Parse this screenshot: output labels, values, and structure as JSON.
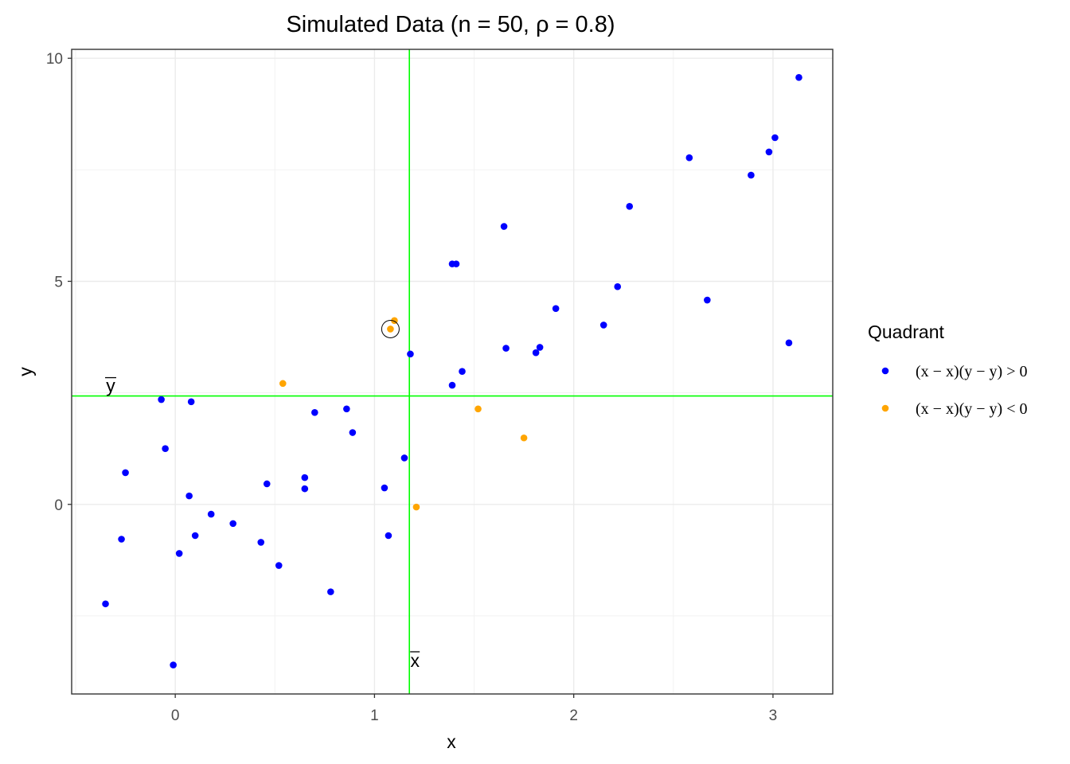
{
  "chart_data": {
    "type": "scatter",
    "title": "Simulated Data (n = 50, ρ = 0.8)",
    "xlabel": "x",
    "ylabel": "y",
    "xlim": [
      -0.52,
      3.3
    ],
    "ylim": [
      -4.25,
      10.2
    ],
    "x_ticks": [
      0,
      1,
      2,
      3
    ],
    "y_ticks": [
      0,
      5,
      10
    ],
    "x_minor_ticks": [
      -0.5,
      0.5,
      1.5,
      2.5
    ],
    "y_minor_ticks": [
      -2.5,
      2.5,
      7.5
    ],
    "grid": true,
    "x_mean": 1.175,
    "y_mean": 2.43,
    "x_mean_label": "x",
    "y_mean_label": "y",
    "mean_line_color": "#00ff00",
    "highlight_point": {
      "x": 1.08,
      "y": 3.93
    },
    "legend": {
      "title": "Quadrant",
      "position": "right",
      "entries": [
        {
          "key": "pos",
          "label": "(x − x)(y − y) > 0",
          "color": "#0000ff"
        },
        {
          "key": "neg",
          "label": "(x − x)(y − y) < 0",
          "color": "#ffa500"
        }
      ]
    },
    "series": [
      {
        "name": "(x − x)(y − y) > 0",
        "color": "#0000ff",
        "points": [
          [
            -0.35,
            -2.23
          ],
          [
            -0.27,
            -0.78
          ],
          [
            -0.25,
            0.71
          ],
          [
            -0.07,
            2.35
          ],
          [
            -0.05,
            1.25
          ],
          [
            -0.01,
            -3.6
          ],
          [
            0.02,
            -1.1
          ],
          [
            0.07,
            0.19
          ],
          [
            0.08,
            2.3
          ],
          [
            0.1,
            -0.7
          ],
          [
            0.18,
            -0.22
          ],
          [
            0.29,
            -0.43
          ],
          [
            0.43,
            -0.85
          ],
          [
            0.46,
            0.46
          ],
          [
            0.52,
            -1.37
          ],
          [
            0.65,
            0.35
          ],
          [
            0.65,
            0.6
          ],
          [
            0.7,
            2.06
          ],
          [
            0.78,
            -1.96
          ],
          [
            0.86,
            2.14
          ],
          [
            0.89,
            1.61
          ],
          [
            1.05,
            0.37
          ],
          [
            1.07,
            -0.7
          ],
          [
            1.15,
            1.04
          ],
          [
            1.18,
            3.37
          ],
          [
            1.39,
            2.67
          ],
          [
            1.39,
            5.39
          ],
          [
            1.41,
            5.39
          ],
          [
            1.44,
            2.98
          ],
          [
            1.65,
            6.23
          ],
          [
            1.66,
            3.5
          ],
          [
            1.81,
            3.4
          ],
          [
            1.83,
            3.52
          ],
          [
            1.91,
            4.39
          ],
          [
            2.15,
            4.02
          ],
          [
            2.22,
            4.88
          ],
          [
            2.28,
            6.68
          ],
          [
            2.58,
            7.77
          ],
          [
            2.67,
            4.58
          ],
          [
            2.89,
            7.38
          ],
          [
            2.98,
            7.9
          ],
          [
            3.01,
            8.22
          ],
          [
            3.08,
            3.62
          ],
          [
            3.13,
            9.57
          ]
        ]
      },
      {
        "name": "(x − x)(y − y) < 0",
        "color": "#ffa500",
        "points": [
          [
            0.54,
            2.71
          ],
          [
            1.08,
            3.93
          ],
          [
            1.1,
            4.12
          ],
          [
            1.21,
            -0.06
          ],
          [
            1.52,
            2.14
          ],
          [
            1.75,
            1.49
          ]
        ]
      }
    ]
  }
}
